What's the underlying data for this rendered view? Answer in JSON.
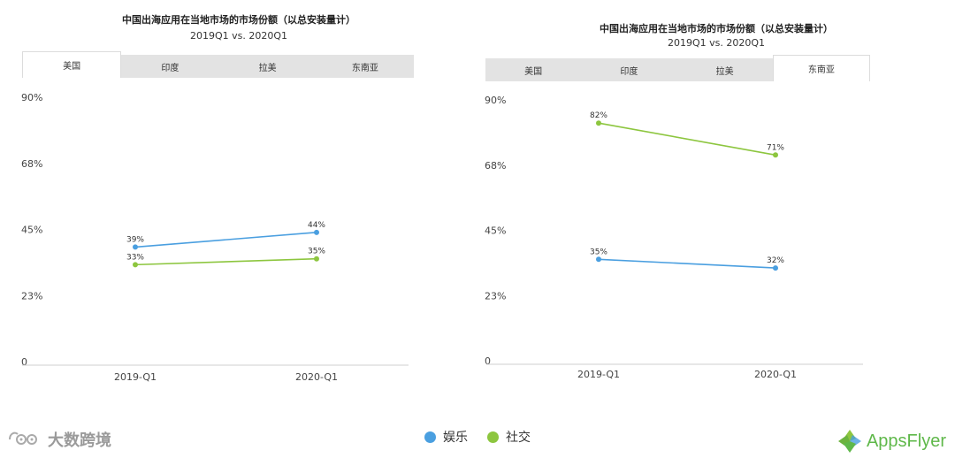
{
  "colors": {
    "entertainment": "#4a9fe0",
    "social": "#8dc63f",
    "grid": "#cfcfcf",
    "tab_bg": "#e3e3e3"
  },
  "legend": [
    {
      "label": "娱乐",
      "color": "#4a9fe0"
    },
    {
      "label": "社交",
      "color": "#8dc63f"
    }
  ],
  "watermarks": {
    "left_text": "大数跨境",
    "right_text": "AppsFlyer"
  },
  "chart_data": [
    {
      "type": "line",
      "title": "中国出海应用在当地市场的市场份额（以总安装量计）",
      "subtitle": "2019Q1 vs. 2020Q1",
      "tabs": [
        "美国",
        "印度",
        "拉美",
        "东南亚"
      ],
      "active_tab": 0,
      "categories": [
        "2019-Q1",
        "2020-Q1"
      ],
      "y_ticks": [
        "90%",
        "68%",
        "45%",
        "23%",
        "0"
      ],
      "ylim": [
        0,
        90
      ],
      "series": [
        {
          "name": "娱乐",
          "values": [
            39,
            44
          ],
          "labels": [
            "39%",
            "44%"
          ]
        },
        {
          "name": "社交",
          "values": [
            33,
            35
          ],
          "labels": [
            "33%",
            "35%"
          ]
        }
      ]
    },
    {
      "type": "line",
      "title": "中国出海应用在当地市场的市场份额（以总安装量计）",
      "subtitle": "2019Q1 vs. 2020Q1",
      "tabs": [
        "美国",
        "印度",
        "拉美",
        "东南亚"
      ],
      "active_tab": 3,
      "categories": [
        "2019-Q1",
        "2020-Q1"
      ],
      "y_ticks": [
        "90%",
        "68%",
        "45%",
        "23%",
        "0"
      ],
      "ylim": [
        0,
        90
      ],
      "series": [
        {
          "name": "娱乐",
          "values": [
            35,
            32
          ],
          "labels": [
            "35%",
            "32%"
          ]
        },
        {
          "name": "社交",
          "values": [
            82,
            71
          ],
          "labels": [
            "82%",
            "71%"
          ]
        }
      ]
    }
  ]
}
